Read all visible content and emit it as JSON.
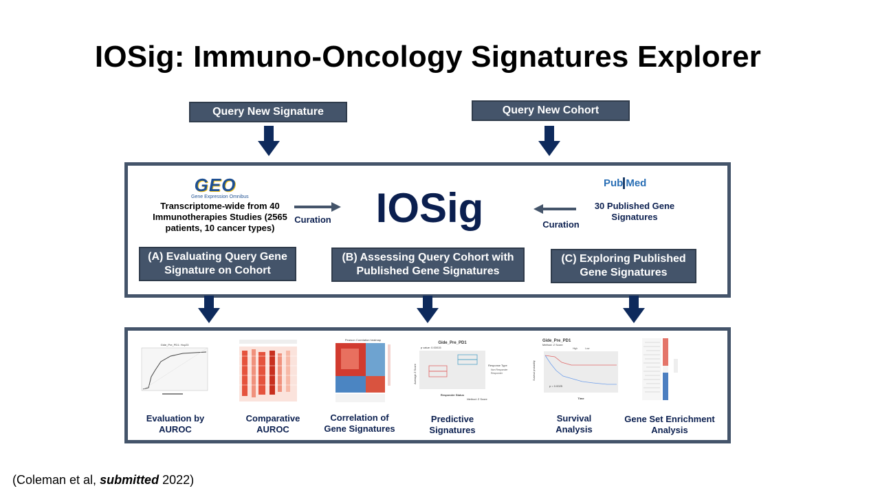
{
  "title": "IOSig: Immuno-Oncology Signatures Explorer",
  "query_signature_label": "Query New Signature",
  "query_cohort_label": "Query New Cohort",
  "center_logo": "IOSig",
  "geo": {
    "logo": "GEO",
    "logo_sub": "Gene Expression Omnibus",
    "description": "Transcriptome-wide from 40 Immunotherapies Studies (2565 patients, 10 cancer types)",
    "curation": "Curation"
  },
  "pubmed": {
    "logo_pub": "Pub",
    "logo_med": "Med",
    "description": "30 Published Gene Signatures",
    "curation": "Curation"
  },
  "sections": {
    "a": "(A) Evaluating Query Gene Signature on Cohort",
    "b": "(B) Assessing Query Cohort with Published Gene Signatures",
    "c": "(C) Exploring Published Gene Signatures"
  },
  "outputs": [
    {
      "label": "Evaluation by AUROC",
      "plot_title": "Gide_Pre_PD1: Hoy23"
    },
    {
      "label": "Comparative AUROC"
    },
    {
      "label": "Correlation of Gene Signatures",
      "plot_title": "Pearson Correlation heatmap"
    },
    {
      "label": "Predictive Signatures",
      "plot_title": "Gide_Pre_PD1",
      "p_value": "p value: 0.00015",
      "xlabel": "Responder Status",
      "ylabel": "Average Z Score",
      "legend_title": "Response Type",
      "legend_items": [
        "Non Responder",
        "Responder"
      ],
      "method": "Method: Z Score"
    },
    {
      "label": "Survival Analysis",
      "plot_title": "Gide_Pre_PD1",
      "method": "Method: Z Score",
      "legend_items": [
        "High",
        "Low"
      ],
      "ylabel": "Survival probability",
      "xlabel": "Time",
      "p_value": "p = 0.0025"
    },
    {
      "label": "Gene Set Enrichment Analysis"
    }
  ],
  "citation": {
    "prefix": "(Coleman et al, ",
    "emph": "submitted",
    "suffix": " 2022)"
  },
  "colors": {
    "box": "#44546a",
    "navy": "#0b1f4f",
    "arrow": "#0e2a5c"
  }
}
